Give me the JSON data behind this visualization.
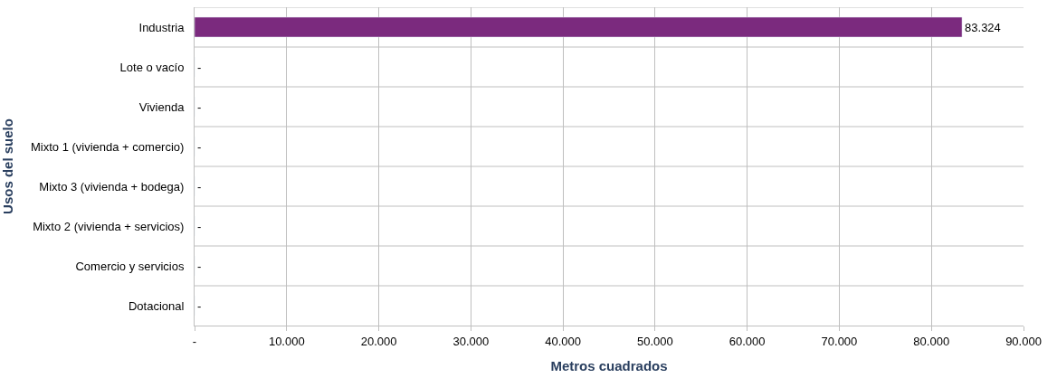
{
  "chart_data": {
    "type": "bar",
    "orientation": "horizontal",
    "xlabel": "Metros cuadrados",
    "ylabel": "Usos del suelo",
    "categories": [
      "Industria",
      "Lote o vacío",
      "Vivienda",
      "Mixto 1 (vivienda + comercio)",
      "Mixto 3 (vivienda + bodega)",
      "Mixto 2 (vivienda + servicios)",
      "Comercio y servicios",
      "Dotacional"
    ],
    "values": [
      83324,
      0,
      0,
      0,
      0,
      0,
      0,
      0
    ],
    "value_labels": [
      "83.324",
      "-",
      "-",
      "-",
      "-",
      "-",
      "-",
      "-"
    ],
    "color": "#7b2a7e",
    "xlim": [
      0,
      90000
    ],
    "xticks": [
      {
        "value": 0,
        "label": "-"
      },
      {
        "value": 10000,
        "label": "10.000"
      },
      {
        "value": 20000,
        "label": "20.000"
      },
      {
        "value": 30000,
        "label": "30.000"
      },
      {
        "value": 40000,
        "label": "40.000"
      },
      {
        "value": 50000,
        "label": "50.000"
      },
      {
        "value": 60000,
        "label": "60.000"
      },
      {
        "value": 70000,
        "label": "70.000"
      },
      {
        "value": 80000,
        "label": "80.000"
      },
      {
        "value": 90000,
        "label": "90.000"
      }
    ],
    "grid": true,
    "legend": false
  }
}
